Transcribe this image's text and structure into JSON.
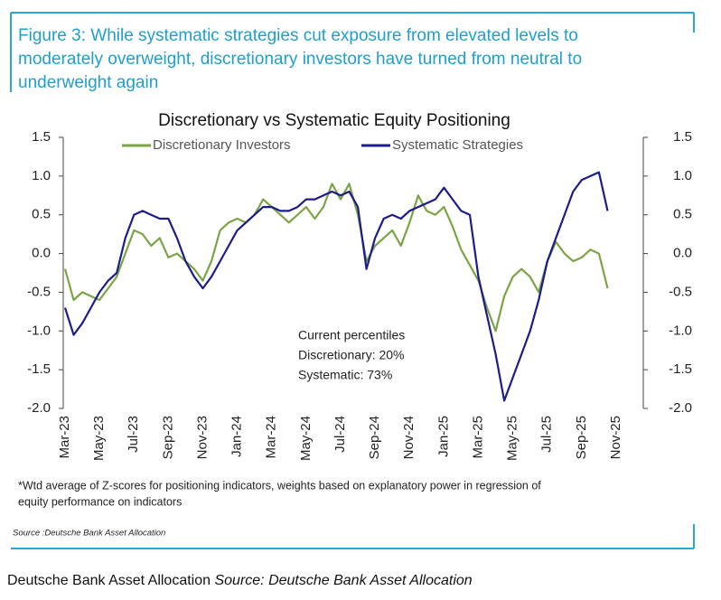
{
  "figure_title": [
    "Figure 3: While systematic strategies cut exposure from elevated levels to",
    "moderately overweight, discretionary investors have turned from neutral to",
    "underweight again"
  ],
  "chart_data": {
    "type": "line",
    "title": "Discretionary  vs Systematic Equity Positioning",
    "categories": [
      "Mar-23",
      null,
      null,
      null,
      "May-23",
      null,
      null,
      null,
      "Jul-23",
      null,
      null,
      null,
      "Sep-23",
      null,
      null,
      null,
      "Nov-23",
      null,
      null,
      null,
      "Jan-24",
      null,
      null,
      null,
      "Mar-24",
      null,
      null,
      null,
      "May-24",
      null,
      null,
      null,
      "Jul-24",
      null,
      null,
      null,
      "Sep-24",
      null,
      null,
      null,
      "Nov-24",
      null,
      null,
      null,
      "Jan-25",
      null,
      null,
      null,
      "Mar-25",
      null,
      null,
      null,
      "May-25",
      null,
      null,
      null,
      "Jul-25",
      null,
      null,
      null,
      "Sep-25",
      null,
      null,
      null,
      "Nov-25"
    ],
    "series": [
      {
        "name": "Discretionary Investors",
        "color": "#7ba445",
        "values": [
          -0.2,
          -0.6,
          -0.5,
          -0.55,
          -0.6,
          -0.45,
          -0.3,
          0.0,
          0.3,
          0.25,
          0.1,
          0.2,
          -0.05,
          0.0,
          -0.1,
          -0.2,
          -0.35,
          -0.1,
          0.3,
          0.4,
          0.45,
          0.4,
          0.5,
          0.7,
          0.6,
          0.5,
          0.4,
          0.5,
          0.6,
          0.45,
          0.6,
          0.9,
          0.7,
          0.9,
          0.5,
          -0.1,
          0.1,
          0.2,
          0.3,
          0.1,
          0.4,
          0.75,
          0.55,
          0.5,
          0.6,
          0.35,
          0.05,
          -0.15,
          -0.35,
          -0.7,
          -1.0,
          -0.55,
          -0.3,
          -0.2,
          -0.3,
          -0.5,
          -0.1,
          0.15,
          0.0,
          -0.1,
          -0.05,
          0.05,
          0.0,
          -0.45,
          null
        ]
      },
      {
        "name": "Systematic Strategies",
        "color": "#1c1c8a",
        "values": [
          -0.7,
          -1.05,
          -0.9,
          -0.7,
          -0.5,
          -0.35,
          -0.25,
          0.2,
          0.5,
          0.55,
          0.5,
          0.45,
          0.45,
          0.2,
          -0.1,
          -0.3,
          -0.45,
          -0.3,
          -0.1,
          0.1,
          0.3,
          0.4,
          0.5,
          0.6,
          0.6,
          0.55,
          0.55,
          0.6,
          0.7,
          0.7,
          0.75,
          0.8,
          0.75,
          0.8,
          0.6,
          -0.2,
          0.2,
          0.45,
          0.5,
          0.45,
          0.55,
          0.6,
          0.65,
          0.7,
          0.85,
          0.7,
          0.55,
          0.5,
          -0.3,
          -0.8,
          -1.3,
          -1.9,
          -1.6,
          -1.3,
          -1.0,
          -0.6,
          -0.1,
          0.2,
          0.5,
          0.8,
          0.95,
          1.0,
          1.05,
          0.55,
          null
        ]
      }
    ],
    "ylim": [
      -2.0,
      1.5
    ],
    "yticks": [
      {
        "value": -2,
        "label": "-2.0"
      },
      -1.5,
      {
        "value": -1,
        "label": "-1.0"
      },
      -0.5,
      {
        "value": 0,
        "label": "0.0"
      },
      0.5,
      {
        "value": 1,
        "label": "1.0"
      },
      1.5
    ],
    "y2lim": [
      -2.0,
      1.5
    ],
    "y2ticks": [
      {
        "value": -2,
        "label": "-2.0"
      },
      -1.5,
      {
        "value": -1,
        "label": "-1.0"
      },
      -0.5,
      {
        "value": 0,
        "label": "0.0"
      },
      0.5,
      {
        "value": 1,
        "label": "1.0"
      },
      1.5
    ],
    "annotations": [
      "Current percentiles",
      "Discretionary: 20%",
      "Systematic: 73%"
    ],
    "grid": false
  },
  "footnote": [
    "*Wtd average of Z-scores for positioning indicators, weights based on explanatory power in regression of",
    "equity performance on indicators"
  ],
  "source": "Source :Deutsche Bank Asset Allocation",
  "caption": {
    "text": "Deutsche Bank Asset Allocation",
    "source": "Source: Deutsche Bank Asset Allocation"
  }
}
